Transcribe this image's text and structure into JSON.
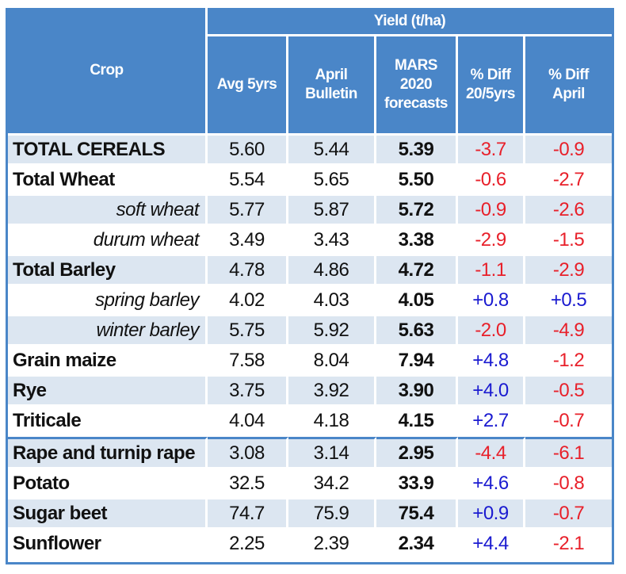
{
  "table": {
    "header": {
      "crop": "Crop",
      "group": "Yield (t/ha)",
      "columns": [
        {
          "line1": "Avg 5yrs",
          "line2": "",
          "line3": ""
        },
        {
          "line1": "April",
          "line2": "Bulletin",
          "line3": ""
        },
        {
          "line1": "MARS",
          "line2": "2020",
          "line3": "forecasts"
        },
        {
          "line1": "% Diff",
          "line2": "20/5yrs",
          "line3": ""
        },
        {
          "line1": "% Diff",
          "line2": "April",
          "line3": ""
        }
      ]
    },
    "rows": [
      {
        "crop": "TOTAL CEREALS",
        "avg5": "5.60",
        "april": "5.44",
        "mars": "5.39",
        "diff5": "-3.7",
        "diffApril": "-0.9",
        "level": "total"
      },
      {
        "crop": "Total Wheat",
        "avg5": "5.54",
        "april": "5.65",
        "mars": "5.50",
        "diff5": "-0.6",
        "diffApril": "-2.7",
        "level": "total"
      },
      {
        "crop": "soft wheat",
        "avg5": "5.77",
        "april": "5.87",
        "mars": "5.72",
        "diff5": "-0.9",
        "diffApril": "-2.6",
        "level": "sub"
      },
      {
        "crop": "durum wheat",
        "avg5": "3.49",
        "april": "3.43",
        "mars": "3.38",
        "diff5": "-2.9",
        "diffApril": "-1.5",
        "level": "sub"
      },
      {
        "crop": "Total Barley",
        "avg5": "4.78",
        "april": "4.86",
        "mars": "4.72",
        "diff5": "-1.1",
        "diffApril": "-2.9",
        "level": "total"
      },
      {
        "crop": "spring barley",
        "avg5": "4.02",
        "april": "4.03",
        "mars": "4.05",
        "diff5": "+0.8",
        "diffApril": "+0.5",
        "level": "sub"
      },
      {
        "crop": "winter barley",
        "avg5": "5.75",
        "april": "5.92",
        "mars": "5.63",
        "diff5": "-2.0",
        "diffApril": "-4.9",
        "level": "sub"
      },
      {
        "crop": "Grain maize",
        "avg5": "7.58",
        "april": "8.04",
        "mars": "7.94",
        "diff5": "+4.8",
        "diffApril": "-1.2",
        "level": "total"
      },
      {
        "crop": "Rye",
        "avg5": "3.75",
        "april": "3.92",
        "mars": "3.90",
        "diff5": "+4.0",
        "diffApril": "-0.5",
        "level": "total"
      },
      {
        "crop": "Triticale",
        "avg5": "4.04",
        "april": "4.18",
        "mars": "4.15",
        "diff5": "+2.7",
        "diffApril": "-0.7",
        "level": "total"
      },
      {
        "crop": "Rape and turnip rape",
        "avg5": "3.08",
        "april": "3.14",
        "mars": "2.95",
        "diff5": "-4.4",
        "diffApril": "-6.1",
        "level": "total"
      },
      {
        "crop": "Potato",
        "avg5": "32.5",
        "april": "34.2",
        "mars": "33.9",
        "diff5": "+4.6",
        "diffApril": "-0.8",
        "level": "total"
      },
      {
        "crop": "Sugar beet",
        "avg5": "74.7",
        "april": "75.9",
        "mars": "75.4",
        "diff5": "+0.9",
        "diffApril": "-0.7",
        "level": "total"
      },
      {
        "crop": "Sunflower",
        "avg5": "2.25",
        "april": "2.39",
        "mars": "2.34",
        "diff5": "+4.4",
        "diffApril": "-2.1",
        "level": "total"
      }
    ]
  },
  "colors": {
    "header_bg": "#4a86c8",
    "alt_row_bg": "#dce6f1",
    "negative": "#e8202a",
    "positive": "#1a1ad0"
  }
}
